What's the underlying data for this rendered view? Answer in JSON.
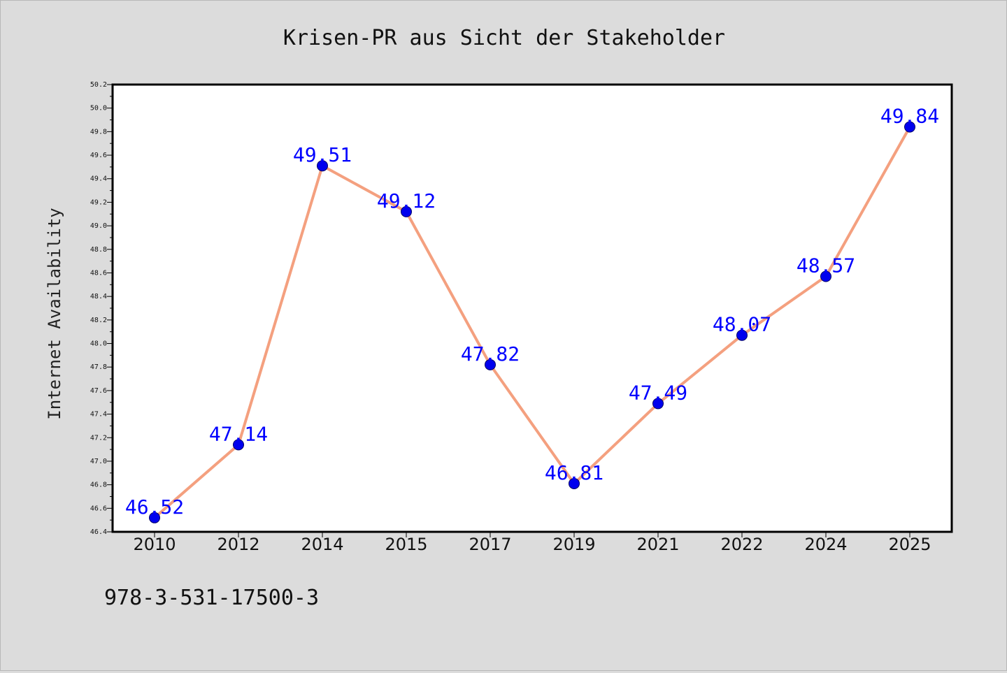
{
  "figure": {
    "isbn_text": "978-3-531-17500-3"
  },
  "chart_data": {
    "type": "line",
    "title": "Krisen-PR aus Sicht der Stakeholder",
    "xlabel": "",
    "ylabel": "Internet Availability",
    "categories": [
      "2010",
      "2012",
      "2014",
      "2015",
      "2017",
      "2019",
      "2021",
      "2022",
      "2024",
      "2025"
    ],
    "series": [
      {
        "values": [
          46.52,
          47.14,
          49.51,
          49.12,
          47.82,
          46.81,
          47.49,
          48.07,
          48.57,
          49.84
        ],
        "data_labels": [
          "46.52",
          "47.14",
          "49.51",
          "49.12",
          "47.82",
          "46.81",
          "47.49",
          "48.07",
          "48.57",
          "49.84"
        ]
      }
    ],
    "ylim": [
      46.4,
      50.2
    ],
    "y_ticks": [
      "46.4",
      "46.6",
      "46.8",
      "47.0",
      "47.2",
      "47.4",
      "47.6",
      "47.8",
      "48.0",
      "48.2",
      "48.4",
      "48.6",
      "48.8",
      "49.0",
      "49.2",
      "49.4",
      "49.6",
      "49.8",
      "50.0",
      "50.2"
    ],
    "grid": false,
    "legend": "none",
    "colors": {
      "line": "#f4a07f",
      "marker": "#0000ee",
      "label": "#0000ff",
      "figure_background": "#dcdcdc",
      "plot_background": "#ffffff"
    }
  }
}
